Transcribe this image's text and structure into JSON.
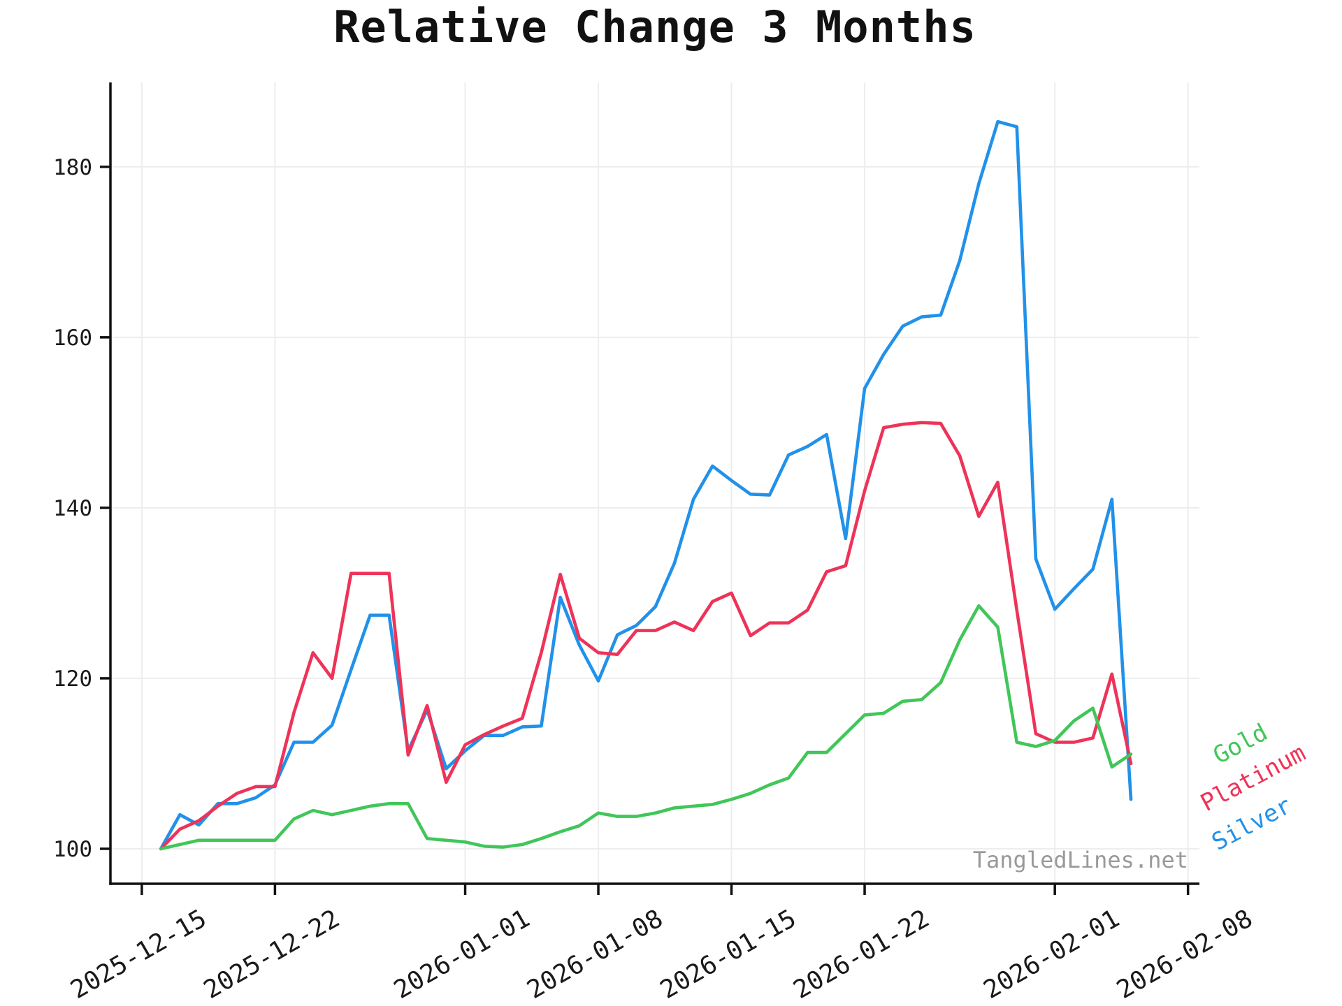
{
  "header": {
    "title": "Relative Change 3 Months"
  },
  "watermark_text": "TangledLines.net",
  "colors": {
    "axis": "#111111",
    "grid": "#ededed",
    "tick_label": "#1a1a1a",
    "watermark": "#999999",
    "gold": "#41c659",
    "platinum": "#ee3359",
    "silver": "#2191e9"
  },
  "chart_data": {
    "type": "line",
    "title": "Relative Change 3 Months",
    "xlabel": "",
    "ylabel": "",
    "grid": true,
    "legend_position": "right-outside-rotated",
    "ylim": [
      95.9,
      189.9
    ],
    "x_range_dates": [
      "2025-12-13",
      "2026-02-09"
    ],
    "y_ticks": [
      {
        "value": 100,
        "label": "100"
      },
      {
        "value": 120,
        "label": "120"
      },
      {
        "value": 140,
        "label": "140"
      },
      {
        "value": 160,
        "label": "160"
      },
      {
        "value": 180,
        "label": "180"
      }
    ],
    "x_ticks": [
      {
        "date": "2025-12-15",
        "label": "2025-12-15"
      },
      {
        "date": "2025-12-22",
        "label": "2025-12-22"
      },
      {
        "date": "2026-01-01",
        "label": "2026-01-01"
      },
      {
        "date": "2026-01-08",
        "label": "2026-01-08"
      },
      {
        "date": "2026-01-15",
        "label": "2026-01-15"
      },
      {
        "date": "2026-01-22",
        "label": "2026-01-22"
      },
      {
        "date": "2026-02-01",
        "label": "2026-02-01"
      },
      {
        "date": "2026-02-08",
        "label": "2026-02-08"
      }
    ],
    "dates": [
      "2025-12-16",
      "2025-12-17",
      "2025-12-18",
      "2025-12-19",
      "2025-12-20",
      "2025-12-21",
      "2025-12-22",
      "2025-12-23",
      "2025-12-24",
      "2025-12-25",
      "2025-12-26",
      "2025-12-27",
      "2025-12-28",
      "2025-12-29",
      "2025-12-30",
      "2025-12-31",
      "2026-01-01",
      "2026-01-02",
      "2026-01-03",
      "2026-01-04",
      "2026-01-05",
      "2026-01-06",
      "2026-01-07",
      "2026-01-08",
      "2026-01-09",
      "2026-01-10",
      "2026-01-11",
      "2026-01-12",
      "2026-01-13",
      "2026-01-14",
      "2026-01-15",
      "2026-01-16",
      "2026-01-17",
      "2026-01-18",
      "2026-01-19",
      "2026-01-20",
      "2026-01-21",
      "2026-01-22",
      "2026-01-23",
      "2026-01-24",
      "2026-01-25",
      "2026-01-26",
      "2026-01-27",
      "2026-01-28",
      "2026-01-29",
      "2026-01-30",
      "2026-01-31",
      "2026-02-01",
      "2026-02-02",
      "2026-02-03",
      "2026-02-04",
      "2026-02-05"
    ],
    "series": [
      {
        "name": "Gold",
        "color": "#41c659",
        "values": [
          100,
          100.5,
          101,
          101,
          101,
          101,
          101,
          103.5,
          104.5,
          104,
          104.5,
          105,
          105.3,
          105.3,
          101.2,
          101,
          100.8,
          100.3,
          100.2,
          100.5,
          101.2,
          102,
          102.7,
          104.2,
          103.8,
          103.8,
          104.2,
          104.8,
          105,
          105.2,
          105.8,
          106.5,
          107.5,
          108.3,
          111.3,
          111.3,
          113.5,
          115.7,
          115.9,
          117.3,
          117.5,
          119.5,
          124.5,
          128.5,
          126,
          112.5,
          112,
          112.7,
          115,
          116.5,
          109.6,
          111.1
        ]
      },
      {
        "name": "Platinum",
        "color": "#ee3359",
        "values": [
          100,
          102.3,
          103.3,
          105,
          106.5,
          107.3,
          107.3,
          116,
          123,
          120,
          132.3,
          132.3,
          132.3,
          111,
          116.8,
          107.8,
          112.2,
          113.4,
          114.4,
          115.3,
          123,
          132.2,
          124.7,
          123,
          122.8,
          125.6,
          125.6,
          126.6,
          125.6,
          129,
          130,
          125,
          126.5,
          126.5,
          128,
          132.5,
          133.2,
          142,
          149.4,
          149.8,
          150,
          149.9,
          146.1,
          139,
          143,
          128,
          113.5,
          112.5,
          112.5,
          113,
          120.5,
          110
        ]
      },
      {
        "name": "Silver",
        "color": "#2191e9",
        "values": [
          100,
          104,
          102.8,
          105.3,
          105.3,
          106,
          107.5,
          112.5,
          112.5,
          114.5,
          121,
          127.4,
          127.4,
          111.5,
          116.3,
          109.4,
          111.5,
          113.3,
          113.3,
          114.3,
          114.4,
          129.5,
          123.9,
          119.7,
          125.1,
          126.2,
          128.4,
          133.5,
          141,
          144.9,
          143.2,
          141.6,
          141.5,
          146.2,
          147.2,
          148.6,
          136.4,
          154,
          158,
          161.3,
          162.4,
          162.6,
          169,
          178,
          185.3,
          184.7,
          134,
          128.1,
          130.5,
          132.8,
          141,
          105.8
        ]
      }
    ]
  }
}
